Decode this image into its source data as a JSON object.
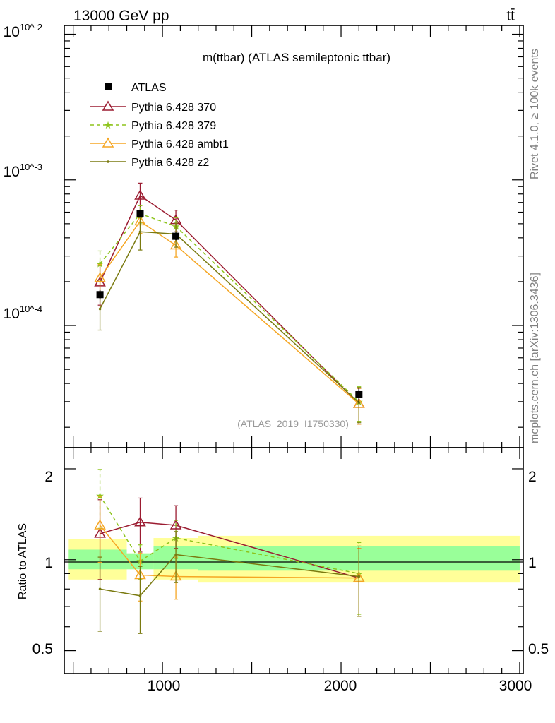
{
  "header": {
    "left": "13000 GeV pp",
    "right": "tt̄"
  },
  "side": {
    "rivet": "Rivet 4.1.0, ≥ 100k events",
    "mcplots": "mcplots.cern.ch [arXiv:1306.3436]"
  },
  "ratio_label": "Ratio to ATLAS",
  "chart_data": [
    {
      "type": "line",
      "title": "m(ttbar) (ATLAS semileptonic ttbar)",
      "analysis_id": "(ATLAS_2019_I1750330)",
      "yscale": "log",
      "ylim": [
        1.45e-05,
        0.0115
      ],
      "xlim": [
        450,
        3020
      ],
      "y_tick_labels": [
        "10^-2",
        "10^-3",
        "10^-4"
      ],
      "data": {
        "name": "ATLAS",
        "color": "#000000",
        "x": [
          650,
          875,
          1075,
          2100
        ],
        "y": [
          0.000163,
          0.00059,
          0.00041,
          3.35e-05
        ],
        "yerr": [
          1.2e-05,
          3e-05,
          2.5e-05,
          4e-06
        ],
        "bins": [
          [
            475,
            800
          ],
          [
            800,
            950
          ],
          [
            950,
            1200
          ],
          [
            1200,
            3000
          ]
        ]
      },
      "series": [
        {
          "name": "Pythia 6.428 370",
          "color": "#9b1c31",
          "marker": "triangle-open",
          "dash": "",
          "x": [
            650,
            875,
            1075,
            2100
          ],
          "y": [
            0.000198,
            0.00078,
            0.00053,
            2.9e-05
          ],
          "yerr": [
            6e-05,
            0.00017,
            9e-05,
            8e-06
          ]
        },
        {
          "name": "Pythia 6.428 379",
          "color": "#8dc41c",
          "marker": "star",
          "dash": "5,4",
          "x": [
            650,
            875,
            1075,
            2100
          ],
          "y": [
            0.000265,
            0.000585,
            0.00048,
            3e-05
          ],
          "yerr": [
            6e-05,
            8e-05,
            7e-05,
            8e-06
          ]
        },
        {
          "name": "Pythia 6.428 ambt1",
          "color": "#f5a623",
          "marker": "triangle-open",
          "dash": "",
          "x": [
            650,
            875,
            1075,
            2100
          ],
          "y": [
            0.000212,
            0.00052,
            0.000355,
            2.9e-05
          ],
          "yerr": [
            5e-05,
            9e-05,
            6e-05,
            8e-06
          ]
        },
        {
          "name": "Pythia 6.428 z2",
          "color": "#7a7a10",
          "marker": "dot",
          "dash": "",
          "x": [
            650,
            875,
            1075,
            2100
          ],
          "y": [
            0.00013,
            0.00044,
            0.000425,
            2.95e-05
          ],
          "yerr": [
            3.7e-05,
            0.00011,
            8e-05,
            8e-06
          ]
        }
      ]
    },
    {
      "type": "line",
      "title": "Ratio to ATLAS",
      "yscale": "log",
      "ylim": [
        0.42,
        2.35
      ],
      "xlim": [
        450,
        3020
      ],
      "x_ticks": [
        1000,
        2000,
        3000
      ],
      "x_tick_labels": [
        "1000",
        "2000",
        "3000"
      ],
      "y_ticks": [
        0.5,
        1,
        2
      ],
      "y_tick_labels": [
        "0.5",
        "1",
        "2"
      ],
      "bands": [
        {
          "bin": [
            475,
            800
          ],
          "stat": [
            0.93,
            1.08
          ],
          "total": [
            0.86,
            1.17
          ]
        },
        {
          "bin": [
            800,
            950
          ],
          "stat": [
            0.93,
            1.05
          ],
          "total": [
            0.93,
            1.05
          ]
        },
        {
          "bin": [
            950,
            1200
          ],
          "stat": [
            0.93,
            1.11
          ],
          "total": [
            0.86,
            1.18
          ]
        },
        {
          "bin": [
            1200,
            3000
          ],
          "stat": [
            0.92,
            1.11
          ],
          "total": [
            0.84,
            1.2
          ]
        }
      ],
      "series": [
        {
          "name": "Pythia 6.428 370",
          "x": [
            650,
            875,
            1075,
            2100
          ],
          "y": [
            1.22,
            1.33,
            1.3,
            0.87
          ],
          "yerr": [
            0.36,
            0.27,
            0.21,
            0.22
          ]
        },
        {
          "name": "Pythia 6.428 379",
          "x": [
            650,
            875,
            1075,
            2100
          ],
          "y": [
            1.63,
            0.99,
            1.18,
            0.9
          ],
          "yerr": [
            0.36,
            0.13,
            0.17,
            0.24
          ]
        },
        {
          "name": "Pythia 6.428 ambt1",
          "x": [
            650,
            875,
            1075,
            2100
          ],
          "y": [
            1.3,
            0.89,
            0.88,
            0.87
          ],
          "yerr": [
            0.32,
            0.16,
            0.14,
            0.22
          ]
        },
        {
          "name": "Pythia 6.428 z2",
          "x": [
            650,
            875,
            1075,
            2100
          ],
          "y": [
            0.8,
            0.76,
            1.04,
            0.88
          ],
          "yerr": [
            0.22,
            0.19,
            0.2,
            0.23
          ]
        }
      ]
    }
  ]
}
